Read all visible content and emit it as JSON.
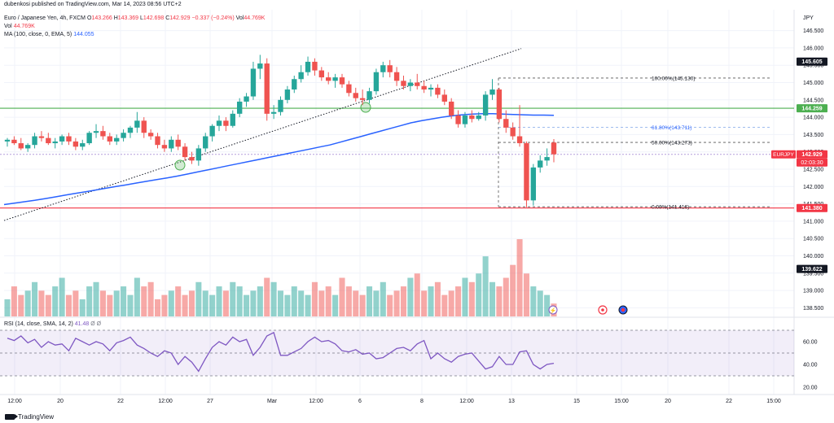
{
  "publisher_line": "dubenkosi published on TradingView.com, Mar 14, 2023 08:56 UTC+2",
  "header": {
    "symbol": "Euro / Japanese Yen, 4h, FXCM",
    "o_label": "O",
    "o": "143.266",
    "h_label": "H",
    "h": "143.369",
    "l_label": "L",
    "l": "142.698",
    "c_label": "C",
    "c": "142.929",
    "change": "−0.337 (−0.24%)",
    "vol_label": "Vol",
    "vol_value": "44.769K",
    "vol_line_label": "Vol",
    "vol_line_value": "44.769K",
    "ma_label": "MA (100, close, 0, EMA, 5)",
    "ma_value": "144.055"
  },
  "rsi_header": {
    "label": "RSI (14, close, SMA, 14, 2)",
    "value": "41.48",
    "extra": "Ø Ø"
  },
  "currency": "JPY",
  "brand": "TradingView",
  "colors": {
    "up": "#26a69a",
    "down": "#ef5350",
    "ma": "#2962ff",
    "rsi": "#7e57c2",
    "green_line": "#4caf50",
    "red_line": "#f23645"
  },
  "chart_data": {
    "type": "candlestick",
    "symbol": "EURJPY",
    "timeframe": "4h",
    "ylim": [
      138.3,
      146.9
    ],
    "y_ticks": [
      "146.500",
      "146.000",
      "145.500",
      "145.000",
      "144.500",
      "144.000",
      "143.500",
      "143.000",
      "142.500",
      "142.000",
      "141.500",
      "141.000",
      "140.500",
      "140.000",
      "139.500",
      "139.000",
      "138.500"
    ],
    "x_ticks": [
      "12:00",
      "20",
      "22",
      "12:00",
      "27",
      "Mar",
      "12:00",
      "6",
      "8",
      "12:00",
      "13",
      "15",
      "15:00",
      "20",
      "22",
      "15:00"
    ],
    "candles": [
      [
        143.3,
        143.4,
        143.15,
        143.35
      ],
      [
        143.35,
        143.45,
        143.2,
        143.25
      ],
      [
        143.25,
        143.4,
        143.05,
        143.1
      ],
      [
        143.1,
        143.25,
        143.0,
        143.2
      ],
      [
        143.2,
        143.55,
        143.1,
        143.45
      ],
      [
        143.45,
        143.6,
        143.3,
        143.4
      ],
      [
        143.4,
        143.55,
        143.2,
        143.25
      ],
      [
        143.25,
        143.4,
        143.1,
        143.3
      ],
      [
        143.3,
        143.5,
        143.2,
        143.45
      ],
      [
        143.45,
        143.55,
        143.2,
        143.3
      ],
      [
        143.3,
        143.4,
        143.05,
        143.15
      ],
      [
        143.15,
        143.35,
        143.05,
        143.25
      ],
      [
        143.25,
        143.6,
        143.2,
        143.55
      ],
      [
        143.55,
        143.8,
        143.4,
        143.6
      ],
      [
        143.6,
        143.75,
        143.35,
        143.45
      ],
      [
        143.45,
        143.55,
        143.2,
        143.3
      ],
      [
        143.3,
        143.5,
        143.2,
        143.4
      ],
      [
        143.4,
        143.65,
        143.3,
        143.55
      ],
      [
        143.55,
        143.75,
        143.4,
        143.7
      ],
      [
        143.7,
        144.15,
        143.55,
        143.9
      ],
      [
        143.9,
        144.0,
        143.4,
        143.55
      ],
      [
        143.55,
        143.65,
        143.35,
        143.45
      ],
      [
        143.45,
        143.55,
        143.1,
        143.2
      ],
      [
        143.2,
        143.35,
        143.0,
        143.1
      ],
      [
        143.1,
        143.45,
        143.0,
        143.35
      ],
      [
        143.35,
        143.5,
        143.05,
        143.15
      ],
      [
        143.15,
        143.25,
        142.75,
        142.85
      ],
      [
        142.85,
        143.0,
        142.65,
        142.75
      ],
      [
        142.75,
        143.2,
        142.6,
        143.1
      ],
      [
        143.1,
        143.55,
        143.0,
        143.45
      ],
      [
        143.45,
        143.8,
        143.3,
        143.75
      ],
      [
        143.75,
        144.05,
        143.6,
        143.9
      ],
      [
        143.9,
        144.0,
        143.6,
        143.75
      ],
      [
        143.75,
        144.2,
        143.7,
        144.1
      ],
      [
        144.1,
        144.55,
        144.0,
        144.45
      ],
      [
        144.45,
        144.7,
        144.3,
        144.6
      ],
      [
        144.6,
        145.6,
        144.5,
        145.4
      ],
      [
        145.4,
        145.8,
        145.1,
        145.55
      ],
      [
        145.55,
        145.7,
        143.9,
        144.1
      ],
      [
        144.1,
        144.35,
        143.95,
        144.15
      ],
      [
        144.15,
        144.6,
        144.05,
        144.5
      ],
      [
        144.5,
        144.9,
        144.4,
        144.8
      ],
      [
        144.8,
        145.2,
        144.7,
        145.1
      ],
      [
        145.1,
        145.5,
        145.0,
        145.3
      ],
      [
        145.3,
        145.75,
        145.2,
        145.6
      ],
      [
        145.6,
        145.7,
        145.2,
        145.35
      ],
      [
        145.35,
        145.45,
        145.05,
        145.15
      ],
      [
        145.15,
        145.3,
        144.95,
        145.05
      ],
      [
        145.05,
        145.25,
        144.85,
        145.15
      ],
      [
        145.15,
        145.25,
        144.85,
        144.95
      ],
      [
        144.95,
        145.05,
        144.6,
        144.7
      ],
      [
        144.7,
        144.85,
        144.45,
        144.55
      ],
      [
        144.55,
        144.8,
        144.35,
        144.5
      ],
      [
        144.5,
        144.85,
        144.4,
        144.75
      ],
      [
        144.75,
        145.4,
        144.65,
        145.3
      ],
      [
        145.3,
        145.6,
        145.15,
        145.5
      ],
      [
        145.5,
        145.65,
        145.15,
        145.3
      ],
      [
        145.3,
        145.45,
        144.9,
        145.05
      ],
      [
        145.05,
        145.2,
        144.8,
        144.9
      ],
      [
        144.9,
        145.1,
        144.75,
        145.0
      ],
      [
        145.0,
        145.25,
        144.8,
        144.9
      ],
      [
        144.9,
        145.05,
        144.7,
        144.8
      ],
      [
        144.8,
        144.95,
        144.6,
        144.85
      ],
      [
        144.85,
        144.95,
        144.55,
        144.65
      ],
      [
        144.65,
        144.8,
        144.35,
        144.45
      ],
      [
        144.45,
        144.55,
        143.95,
        144.05
      ],
      [
        144.05,
        144.2,
        143.7,
        143.8
      ],
      [
        143.8,
        144.15,
        143.7,
        144.05
      ],
      [
        144.05,
        144.2,
        143.85,
        143.95
      ],
      [
        143.95,
        144.15,
        143.9,
        144.05
      ],
      [
        144.05,
        144.75,
        143.9,
        144.65
      ],
      [
        144.65,
        145.1,
        144.5,
        144.8
      ],
      [
        144.8,
        144.85,
        143.85,
        143.95
      ],
      [
        143.95,
        144.2,
        143.55,
        143.7
      ],
      [
        143.7,
        143.85,
        143.35,
        143.45
      ],
      [
        143.45,
        144.35,
        143.15,
        143.25
      ],
      [
        143.25,
        143.3,
        141.4,
        141.6
      ],
      [
        141.6,
        142.65,
        141.45,
        142.55
      ],
      [
        142.55,
        142.9,
        142.4,
        142.75
      ],
      [
        142.75,
        143.1,
        142.6,
        142.85
      ],
      [
        143.27,
        143.37,
        142.7,
        142.93
      ]
    ],
    "price_labels": [
      {
        "value": "145.605",
        "style": "black"
      },
      {
        "value": "144.259",
        "style": "green"
      },
      {
        "value": "142.929",
        "style": "red",
        "symbol": "EURJPY",
        "countdown": "02:03:30"
      },
      {
        "value": "141.380",
        "style": "red"
      },
      {
        "value": "139.622",
        "style": "black"
      }
    ],
    "horizontal_lines": [
      {
        "price": 144.259,
        "color": "#4caf50"
      },
      {
        "price": 141.38,
        "color": "#f23645"
      }
    ],
    "fibonacci": [
      {
        "label": "100.00%(145.130)",
        "price": 145.13
      },
      {
        "label": "61.80%(143.711)",
        "price": 143.711
      },
      {
        "label": "50.00%(143.273)",
        "price": 143.273
      },
      {
        "label": "0.00%(141.416)",
        "price": 141.416
      }
    ],
    "ma_series": [
      141.48,
      141.52,
      141.56,
      141.6,
      141.65,
      141.7,
      141.75,
      141.8,
      141.85,
      141.9,
      141.95,
      142.0,
      142.05,
      142.1,
      142.15,
      142.2,
      142.25,
      142.3,
      142.36,
      142.42,
      142.48,
      142.54,
      142.6,
      142.66,
      142.72,
      142.78,
      142.84,
      142.9,
      142.96,
      143.02,
      143.08,
      143.14,
      143.2,
      143.28,
      143.36,
      143.44,
      143.52,
      143.6,
      143.68,
      143.76,
      143.84,
      143.9,
      143.95,
      144.0,
      144.04,
      144.07,
      144.09,
      144.1,
      144.1,
      144.09,
      144.08,
      144.07,
      144.06,
      144.06,
      144.055
    ],
    "volume": [
      4,
      7,
      5,
      6,
      8,
      6,
      5,
      7,
      9,
      5,
      6,
      4,
      7,
      8,
      6,
      5,
      6,
      7,
      5,
      9,
      7,
      8,
      4,
      5,
      6,
      7,
      5,
      6,
      8,
      6,
      5,
      7,
      6,
      8,
      7,
      5,
      6,
      7,
      9,
      8,
      6,
      5,
      7,
      6,
      5,
      8,
      6,
      7,
      5,
      9,
      7,
      6,
      5,
      7,
      6,
      8,
      5,
      6,
      7,
      9,
      10,
      6,
      7,
      8,
      5,
      6,
      7,
      9,
      8,
      10,
      14,
      8,
      7,
      9,
      12,
      18,
      10,
      7,
      6,
      5,
      3
    ],
    "volume_colors": "up/down by candle",
    "rsi": {
      "ylim": [
        15,
        70
      ],
      "levels": [
        30,
        50,
        70
      ],
      "ticks": [
        "60.00",
        "40.00",
        "20.00"
      ],
      "values": [
        63,
        61,
        65,
        59,
        62,
        55,
        60,
        57,
        58,
        52,
        63,
        60,
        57,
        60,
        58,
        52,
        59,
        61,
        64,
        57,
        54,
        50,
        47,
        52,
        50,
        40,
        47,
        42,
        34,
        45,
        55,
        60,
        57,
        64,
        60,
        62,
        48,
        55,
        65,
        68,
        48,
        48,
        51,
        54,
        60,
        64,
        60,
        61,
        58,
        52,
        51,
        53,
        49,
        50,
        45,
        46,
        50,
        54,
        55,
        52,
        58,
        61,
        45,
        50,
        45,
        42,
        47,
        49,
        50,
        43,
        36,
        38,
        47,
        40,
        40,
        51,
        52,
        40,
        36,
        40,
        41
      ]
    }
  }
}
